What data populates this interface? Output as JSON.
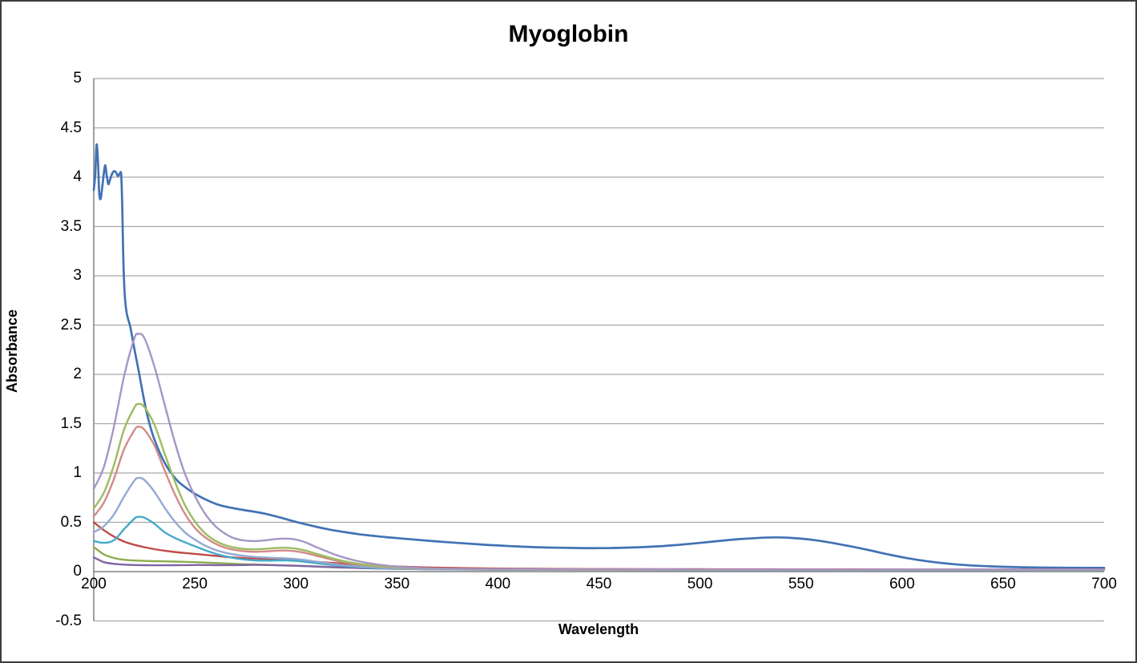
{
  "chart_data": {
    "type": "line",
    "title": "Myoglobin",
    "xlabel": "Wavelength",
    "ylabel": "Absorbance",
    "xlim": [
      200,
      700
    ],
    "ylim": [
      -0.5,
      5
    ],
    "grid": "horizontal",
    "legend": "none",
    "x_tick_labels": [
      "200",
      "250",
      "300",
      "350",
      "400",
      "450",
      "500",
      "550",
      "600",
      "650",
      "700"
    ],
    "y_tick_labels": [
      "5",
      "4.5",
      "4",
      "3.5",
      "3",
      "2.5",
      "2",
      "1.5",
      "1",
      "0.5",
      "0",
      "-0.5"
    ],
    "colors": {
      "gridline": "#a8a8a8",
      "axis_line": "#808080",
      "frame_border": "#3d3d3d",
      "text": "#000000"
    },
    "shared_x": [
      200,
      205,
      210,
      215,
      220,
      222,
      225,
      230,
      235,
      240,
      245,
      250,
      255,
      260,
      265,
      270,
      275,
      280,
      285,
      290,
      295,
      300,
      305,
      310,
      315,
      320,
      325,
      330,
      335,
      340,
      345,
      350,
      360,
      370,
      385,
      400,
      425,
      450,
      500,
      550,
      600,
      650,
      700
    ],
    "series": [
      {
        "name": "blue",
        "color": "#4272b4",
        "width": 2.7,
        "points": [
          [
            200,
            3.87
          ],
          [
            200.7,
            4.02
          ],
          [
            201.4,
            4.33
          ],
          [
            202.1,
            4.16
          ],
          [
            202.7,
            3.84
          ],
          [
            203.4,
            3.78
          ],
          [
            204.2,
            3.9
          ],
          [
            205,
            4.04
          ],
          [
            205.7,
            4.12
          ],
          [
            206.4,
            4.02
          ],
          [
            207.2,
            3.93
          ],
          [
            208,
            3.97
          ],
          [
            209,
            4.03
          ],
          [
            210,
            4.06
          ],
          [
            211,
            4.05
          ],
          [
            212,
            4.01
          ],
          [
            213,
            4.04
          ],
          [
            213.6,
            4.02
          ],
          [
            214.1,
            3.7
          ],
          [
            214.6,
            3.2
          ],
          [
            215.2,
            2.86
          ],
          [
            216,
            2.66
          ],
          [
            217,
            2.56
          ],
          [
            218,
            2.49
          ],
          [
            220,
            2.27
          ],
          [
            222,
            2.06
          ],
          [
            224,
            1.84
          ],
          [
            226,
            1.63
          ],
          [
            228,
            1.47
          ],
          [
            230,
            1.34
          ],
          [
            233,
            1.19
          ],
          [
            236,
            1.07
          ],
          [
            239,
            0.98
          ],
          [
            242,
            0.91
          ],
          [
            246,
            0.845
          ],
          [
            250,
            0.79
          ],
          [
            255,
            0.735
          ],
          [
            260,
            0.69
          ],
          [
            265,
            0.66
          ],
          [
            270,
            0.64
          ],
          [
            275,
            0.622
          ],
          [
            280,
            0.606
          ],
          [
            285,
            0.586
          ],
          [
            290,
            0.561
          ],
          [
            295,
            0.533
          ],
          [
            300,
            0.505
          ],
          [
            305,
            0.479
          ],
          [
            310,
            0.455
          ],
          [
            315,
            0.433
          ],
          [
            320,
            0.414
          ],
          [
            325,
            0.398
          ],
          [
            330,
            0.383
          ],
          [
            335,
            0.37
          ],
          [
            340,
            0.359
          ],
          [
            345,
            0.349
          ],
          [
            350,
            0.34
          ],
          [
            360,
            0.323
          ],
          [
            370,
            0.306
          ],
          [
            380,
            0.291
          ],
          [
            390,
            0.277
          ],
          [
            400,
            0.265
          ],
          [
            410,
            0.255
          ],
          [
            420,
            0.247
          ],
          [
            430,
            0.242
          ],
          [
            440,
            0.239
          ],
          [
            450,
            0.238
          ],
          [
            460,
            0.241
          ],
          [
            470,
            0.247
          ],
          [
            480,
            0.257
          ],
          [
            490,
            0.272
          ],
          [
            500,
            0.291
          ],
          [
            510,
            0.312
          ],
          [
            520,
            0.33
          ],
          [
            530,
            0.343
          ],
          [
            538,
            0.347
          ],
          [
            546,
            0.341
          ],
          [
            554,
            0.326
          ],
          [
            562,
            0.303
          ],
          [
            570,
            0.274
          ],
          [
            578,
            0.242
          ],
          [
            586,
            0.207
          ],
          [
            594,
            0.171
          ],
          [
            602,
            0.139
          ],
          [
            610,
            0.112
          ],
          [
            618,
            0.091
          ],
          [
            626,
            0.075
          ],
          [
            634,
            0.063
          ],
          [
            642,
            0.055
          ],
          [
            650,
            0.049
          ],
          [
            660,
            0.044
          ],
          [
            670,
            0.041
          ],
          [
            682,
            0.039
          ],
          [
            692,
            0.038
          ],
          [
            700,
            0.038
          ]
        ]
      },
      {
        "name": "dark-red",
        "color": "#be4b47",
        "width": 2.4,
        "values": [
          0.5,
          0.42,
          0.355,
          0.305,
          0.272,
          0.262,
          0.248,
          0.228,
          0.212,
          0.199,
          0.189,
          0.18,
          0.17,
          0.16,
          0.15,
          0.142,
          0.136,
          0.133,
          0.13,
          0.126,
          0.121,
          0.115,
          0.108,
          0.1,
          0.092,
          0.085,
          0.078,
          0.071,
          0.065,
          0.06,
          0.056,
          0.052,
          0.045,
          0.04,
          0.035,
          0.031,
          0.028,
          0.026,
          0.024,
          0.023,
          0.022,
          0.022,
          0.022
        ]
      },
      {
        "name": "olive-green",
        "color": "#8cad50",
        "width": 2.4,
        "values": [
          0.25,
          0.175,
          0.138,
          0.12,
          0.113,
          0.111,
          0.109,
          0.106,
          0.104,
          0.102,
          0.099,
          0.096,
          0.092,
          0.088,
          0.083,
          0.079,
          0.075,
          0.072,
          0.069,
          0.066,
          0.063,
          0.06,
          0.056,
          0.052,
          0.048,
          0.045,
          0.042,
          0.039,
          0.036,
          0.034,
          0.032,
          0.03,
          0.027,
          0.025,
          0.023,
          0.021,
          0.02,
          0.019,
          0.018,
          0.018,
          0.018,
          0.018,
          0.018
        ]
      },
      {
        "name": "dark-purple",
        "color": "#8064a2",
        "width": 2.4,
        "values": [
          0.145,
          0.096,
          0.079,
          0.071,
          0.067,
          0.066,
          0.065,
          0.064,
          0.064,
          0.065,
          0.066,
          0.067,
          0.067,
          0.066,
          0.066,
          0.066,
          0.067,
          0.068,
          0.067,
          0.065,
          0.062,
          0.059,
          0.055,
          0.051,
          0.047,
          0.043,
          0.04,
          0.037,
          0.034,
          0.032,
          0.03,
          0.028,
          0.026,
          0.024,
          0.022,
          0.02,
          0.019,
          0.018,
          0.017,
          0.017,
          0.017,
          0.017,
          0.017
        ]
      },
      {
        "name": "teal",
        "color": "#45a9c8",
        "width": 2.4,
        "values": [
          0.31,
          0.292,
          0.318,
          0.43,
          0.535,
          0.555,
          0.547,
          0.485,
          0.4,
          0.343,
          0.298,
          0.258,
          0.218,
          0.183,
          0.156,
          0.136,
          0.122,
          0.114,
          0.111,
          0.112,
          0.113,
          0.108,
          0.098,
          0.086,
          0.074,
          0.064,
          0.055,
          0.047,
          0.041,
          0.036,
          0.032,
          0.029,
          0.025,
          0.022,
          0.02,
          0.019,
          0.018,
          0.017,
          0.016,
          0.016,
          0.016,
          0.016,
          0.016
        ]
      },
      {
        "name": "light-blue",
        "color": "#93a9d2",
        "width": 2.4,
        "values": [
          0.4,
          0.46,
          0.58,
          0.76,
          0.92,
          0.95,
          0.93,
          0.81,
          0.65,
          0.51,
          0.4,
          0.325,
          0.265,
          0.222,
          0.192,
          0.172,
          0.158,
          0.148,
          0.142,
          0.138,
          0.134,
          0.128,
          0.116,
          0.101,
          0.087,
          0.074,
          0.063,
          0.054,
          0.047,
          0.041,
          0.036,
          0.032,
          0.027,
          0.024,
          0.022,
          0.021,
          0.02,
          0.019,
          0.018,
          0.018,
          0.018,
          0.018,
          0.018
        ]
      },
      {
        "name": "salmon",
        "color": "#d28b88",
        "width": 2.4,
        "values": [
          0.56,
          0.7,
          0.94,
          1.24,
          1.43,
          1.47,
          1.44,
          1.28,
          1.03,
          0.79,
          0.59,
          0.445,
          0.35,
          0.285,
          0.243,
          0.219,
          0.206,
          0.201,
          0.205,
          0.211,
          0.214,
          0.206,
          0.188,
          0.162,
          0.136,
          0.111,
          0.091,
          0.075,
          0.063,
          0.054,
          0.047,
          0.041,
          0.033,
          0.028,
          0.024,
          0.022,
          0.02,
          0.019,
          0.018,
          0.018,
          0.018,
          0.018,
          0.018
        ]
      },
      {
        "name": "light-green",
        "color": "#9cbc60",
        "width": 2.4,
        "values": [
          0.64,
          0.8,
          1.08,
          1.44,
          1.66,
          1.7,
          1.67,
          1.49,
          1.2,
          0.92,
          0.68,
          0.51,
          0.39,
          0.315,
          0.268,
          0.242,
          0.229,
          0.226,
          0.231,
          0.239,
          0.242,
          0.233,
          0.212,
          0.182,
          0.152,
          0.124,
          0.101,
          0.083,
          0.069,
          0.058,
          0.05,
          0.044,
          0.035,
          0.029,
          0.025,
          0.023,
          0.021,
          0.02,
          0.019,
          0.018,
          0.018,
          0.018,
          0.018
        ]
      },
      {
        "name": "lavender",
        "color": "#a596c7",
        "width": 2.4,
        "values": [
          0.84,
          1.06,
          1.47,
          1.98,
          2.36,
          2.41,
          2.37,
          2.08,
          1.7,
          1.32,
          1.0,
          0.77,
          0.59,
          0.465,
          0.385,
          0.335,
          0.315,
          0.31,
          0.318,
          0.33,
          0.335,
          0.325,
          0.295,
          0.25,
          0.208,
          0.168,
          0.136,
          0.11,
          0.09,
          0.074,
          0.061,
          0.051,
          0.038,
          0.031,
          0.027,
          0.025,
          0.023,
          0.022,
          0.021,
          0.02,
          0.02,
          0.02,
          0.02
        ]
      }
    ]
  }
}
